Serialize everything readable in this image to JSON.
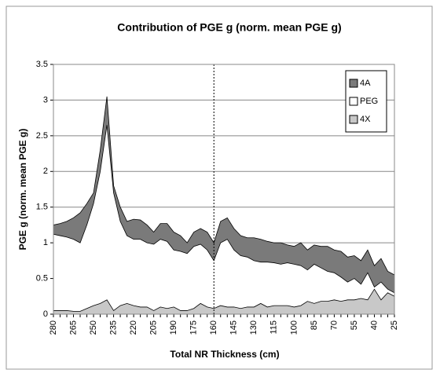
{
  "chart_data": {
    "type": "area",
    "title": "Contribution of PGE g (norm. mean PGE g)",
    "x_label": "Total NR Thickness (cm)",
    "y_label": "PGE g (norm. mean PGE g)",
    "categories": [
      280,
      null,
      null,
      265,
      null,
      null,
      250,
      null,
      null,
      235,
      null,
      null,
      220,
      null,
      null,
      205,
      null,
      null,
      190,
      null,
      null,
      175,
      null,
      null,
      160,
      null,
      null,
      145,
      null,
      null,
      130,
      null,
      null,
      115,
      null,
      null,
      100,
      null,
      null,
      85,
      null,
      null,
      70,
      null,
      null,
      55,
      null,
      null,
      40,
      null,
      null,
      25
    ],
    "series": [
      {
        "name": "4A",
        "color": "#7a7a7a",
        "values": [
          1.25,
          1.27,
          1.3,
          1.35,
          1.42,
          1.55,
          1.7,
          2.3,
          3.05,
          1.8,
          1.5,
          1.3,
          1.33,
          1.32,
          1.25,
          1.15,
          1.27,
          1.27,
          1.15,
          1.1,
          1.0,
          1.15,
          1.2,
          1.15,
          1.0,
          1.3,
          1.35,
          1.2,
          1.1,
          1.07,
          1.07,
          1.05,
          1.02,
          1.0,
          1.0,
          0.97,
          0.95,
          1.0,
          0.9,
          0.97,
          0.95,
          0.95,
          0.9,
          0.88,
          0.8,
          0.82,
          0.75,
          0.9,
          0.68,
          0.78,
          0.6,
          0.55
        ]
      },
      {
        "name": "PEG",
        "color": "#ffffff",
        "values": [
          1.12,
          1.1,
          1.08,
          1.05,
          1.0,
          1.25,
          1.55,
          2.0,
          2.65,
          1.7,
          1.3,
          1.1,
          1.05,
          1.05,
          1.0,
          0.98,
          1.05,
          1.02,
          0.9,
          0.88,
          0.85,
          0.95,
          0.98,
          0.9,
          0.75,
          1.0,
          1.05,
          0.9,
          0.82,
          0.8,
          0.75,
          0.73,
          0.73,
          0.72,
          0.7,
          0.72,
          0.7,
          0.68,
          0.62,
          0.7,
          0.65,
          0.6,
          0.58,
          0.52,
          0.45,
          0.5,
          0.42,
          0.58,
          0.38,
          0.45,
          0.35,
          0.3
        ]
      },
      {
        "name": "4X",
        "color": "#c8c8c8",
        "values": [
          0.05,
          0.05,
          0.05,
          0.04,
          0.04,
          0.08,
          0.12,
          0.15,
          0.2,
          0.05,
          0.12,
          0.15,
          0.12,
          0.1,
          0.1,
          0.05,
          0.1,
          0.08,
          0.1,
          0.05,
          0.05,
          0.08,
          0.15,
          0.1,
          0.08,
          0.12,
          0.1,
          0.1,
          0.08,
          0.1,
          0.1,
          0.15,
          0.1,
          0.12,
          0.12,
          0.12,
          0.1,
          0.12,
          0.18,
          0.15,
          0.18,
          0.18,
          0.2,
          0.18,
          0.2,
          0.2,
          0.22,
          0.2,
          0.35,
          0.2,
          0.3,
          0.25
        ]
      }
    ],
    "ylim": [
      0,
      3.5
    ],
    "yticks": [
      0,
      0.5,
      1,
      1.5,
      2,
      2.5,
      3,
      3.5
    ],
    "grid": true,
    "vline_category": 160,
    "legend": "upper right"
  }
}
